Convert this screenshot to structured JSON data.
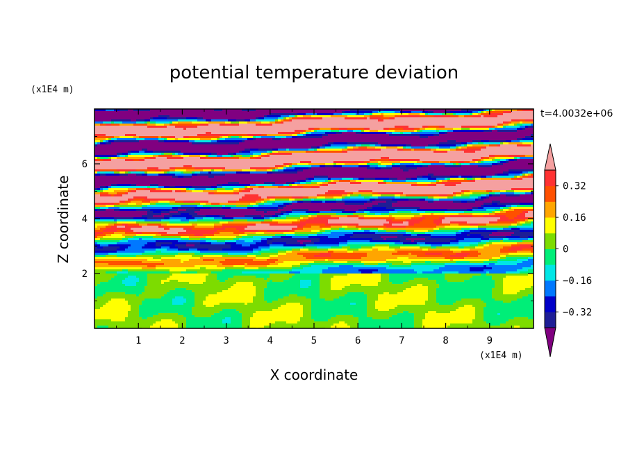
{
  "chart_data": {
    "type": "heatmap",
    "title": "potential temperature deviation",
    "xlabel": "X coordinate",
    "ylabel": "Z coordinate",
    "x_unit": "(x1E4 m)",
    "z_unit": "(x1E4 m)",
    "time_label": "t=4.0032e+06",
    "xlim": [
      0,
      10
    ],
    "ylim": [
      0,
      8
    ],
    "x_ticks": [
      1,
      2,
      3,
      4,
      5,
      6,
      7,
      8,
      9
    ],
    "y_ticks": [
      2,
      4,
      6
    ],
    "colorbar": {
      "levels": [
        -0.4,
        -0.32,
        -0.24,
        -0.16,
        -0.08,
        0,
        0.08,
        0.16,
        0.24,
        0.32,
        0.4
      ],
      "tick_labels": [
        "0.32",
        "0.16",
        "0",
        "-0.16",
        "-0.32"
      ],
      "tick_values": [
        0.32,
        0.16,
        0,
        -0.16,
        -0.32
      ],
      "colors": [
        "#800080",
        "#1e1e96",
        "#0000c8",
        "#0078ff",
        "#00e6e6",
        "#00ee78",
        "#7ddc00",
        "#ffff00",
        "#ffa500",
        "#ff5000",
        "#ff3232",
        "#f5a0a0"
      ],
      "over_color": "#f5a0a0",
      "under_color": "#800080"
    },
    "boundary_layer_top_z": 2
  }
}
